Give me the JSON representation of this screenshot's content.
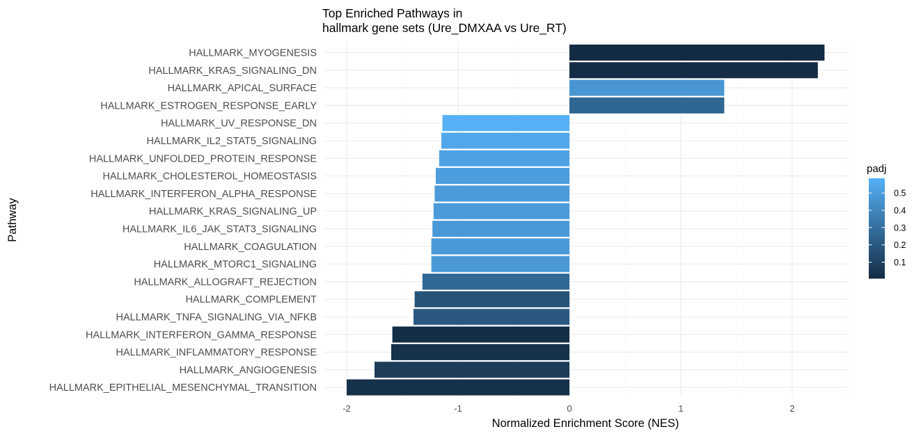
{
  "chart_data": {
    "type": "bar",
    "orientation": "horizontal",
    "title_lines": [
      "Top Enriched Pathways in",
      "hallmark gene sets (Ure_DMXAA vs Ure_RT)"
    ],
    "xlabel": "Normalized Enrichment Score (NES)",
    "ylabel": "Pathway",
    "xlim": [
      -2.2,
      2.5
    ],
    "x_ticks": [
      -2,
      -1,
      0,
      1,
      2
    ],
    "x_tick_labels": [
      "-2",
      "-1",
      "0",
      "1",
      "2"
    ],
    "grid": true,
    "legend": {
      "title": "padj",
      "position": "right",
      "type": "colorbar",
      "range": [
        0.005,
        0.585
      ],
      "ticks": [
        0.1,
        0.2,
        0.3,
        0.4,
        0.5
      ],
      "tick_labels": [
        "0.1",
        "0.2",
        "0.3",
        "0.4",
        "0.5"
      ],
      "low_color": "#132b43",
      "high_color": "#56b1f7"
    },
    "categories": [
      "HALLMARK_MYOGENESIS",
      "HALLMARK_KRAS_SIGNALING_DN",
      "HALLMARK_APICAL_SURFACE",
      "HALLMARK_ESTROGEN_RESPONSE_EARLY",
      "HALLMARK_UV_RESPONSE_DN",
      "HALLMARK_IL2_STAT5_SIGNALING",
      "HALLMARK_UNFOLDED_PROTEIN_RESPONSE",
      "HALLMARK_CHOLESTEROL_HOMEOSTASIS",
      "HALLMARK_INTERFERON_ALPHA_RESPONSE",
      "HALLMARK_KRAS_SIGNALING_UP",
      "HALLMARK_IL6_JAK_STAT3_SIGNALING",
      "HALLMARK_COAGULATION",
      "HALLMARK_MTORC1_SIGNALING",
      "HALLMARK_ALLOGRAFT_REJECTION",
      "HALLMARK_COMPLEMENT",
      "HALLMARK_TNFA_SIGNALING_VIA_NFKB",
      "HALLMARK_INTERFERON_GAMMA_RESPONSE",
      "HALLMARK_INFLAMMATORY_RESPONSE",
      "HALLMARK_ANGIOGENESIS",
      "HALLMARK_EPITHELIAL_MESENCHYMAL_TRANSITION"
    ],
    "values": [
      2.29,
      2.23,
      1.39,
      1.39,
      -1.14,
      -1.15,
      -1.17,
      -1.2,
      -1.21,
      -1.22,
      -1.23,
      -1.24,
      -1.24,
      -1.32,
      -1.39,
      -1.4,
      -1.59,
      -1.6,
      -1.75,
      -2.0
    ],
    "padj": [
      0.005,
      0.01,
      0.47,
      0.26,
      0.58,
      0.54,
      0.52,
      0.5,
      0.49,
      0.49,
      0.48,
      0.48,
      0.48,
      0.27,
      0.18,
      0.2,
      0.02,
      0.03,
      0.08,
      0.03
    ]
  }
}
